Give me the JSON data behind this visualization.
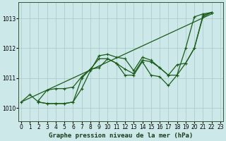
{
  "title": "Graphe pression niveau de la mer (hPa)",
  "bg_color": "#cde8e8",
  "grid_color": "#a8c8c8",
  "line_color": "#1a5c1a",
  "xlim": [
    -0.3,
    23.3
  ],
  "ylim": [
    1009.55,
    1013.55
  ],
  "xticks": [
    0,
    1,
    2,
    3,
    4,
    5,
    6,
    7,
    8,
    9,
    10,
    11,
    12,
    13,
    14,
    15,
    16,
    17,
    18,
    19,
    20,
    21,
    22,
    23
  ],
  "yticks": [
    1010,
    1011,
    1012,
    1013
  ],
  "tick_fontsize": 5.5,
  "xlabel_fontsize": 6.5,
  "series": {
    "trend": {
      "x": [
        0,
        22
      ],
      "y": [
        1010.2,
        1013.15
      ]
    },
    "line1": {
      "x": [
        0,
        1,
        2,
        3,
        4,
        5,
        6,
        7,
        8,
        9,
        10,
        11,
        12,
        13,
        14,
        15,
        16,
        17,
        18,
        19,
        20,
        21,
        22
      ],
      "y": [
        1010.2,
        1010.45,
        1010.2,
        1010.15,
        1010.15,
        1010.15,
        1010.2,
        1010.65,
        1011.25,
        1011.75,
        1011.8,
        1011.7,
        1011.65,
        1011.25,
        1011.7,
        1011.6,
        1011.35,
        1011.1,
        1011.1,
        1012.0,
        1013.05,
        1013.15,
        1013.2
      ]
    },
    "line2": {
      "x": [
        2,
        3,
        4,
        5,
        6,
        7,
        8,
        9,
        10,
        11,
        12,
        13,
        14,
        15,
        16,
        17,
        18,
        19,
        20,
        21,
        22
      ],
      "y": [
        1010.2,
        1010.15,
        1010.15,
        1010.15,
        1010.2,
        1011.0,
        1011.3,
        1011.35,
        1011.65,
        1011.5,
        1011.1,
        1011.1,
        1011.55,
        1011.1,
        1011.05,
        1010.75,
        1011.1,
        1011.5,
        1012.0,
        1013.1,
        1013.2
      ]
    },
    "line3": {
      "x": [
        2,
        3,
        4,
        5,
        6,
        7,
        8,
        9,
        10,
        11,
        12,
        13,
        14,
        15,
        16,
        17,
        18,
        19,
        20,
        21,
        22
      ],
      "y": [
        1010.25,
        1010.6,
        1010.65,
        1010.65,
        1010.7,
        1011.05,
        1011.3,
        1011.65,
        1011.65,
        1011.5,
        1011.3,
        1011.15,
        1011.6,
        1011.55,
        1011.35,
        1011.1,
        1011.45,
        1011.5,
        1012.0,
        1013.05,
        1013.2
      ]
    }
  }
}
